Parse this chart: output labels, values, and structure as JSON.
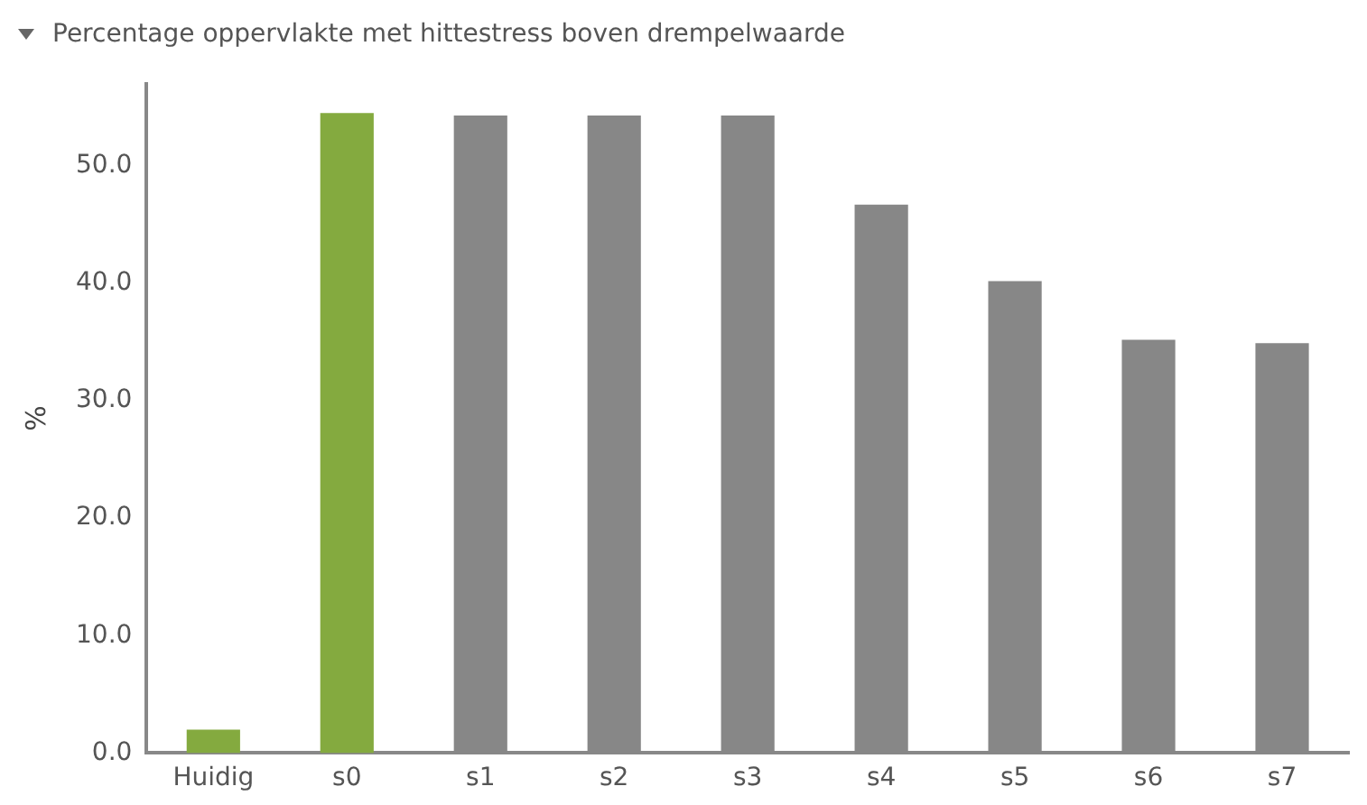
{
  "chart_data": {
    "type": "bar",
    "title": "Percentage oppervlakte met hittestress boven drempelwaarde",
    "ylabel": "%",
    "categories": [
      "Huidig",
      "s0",
      "s1",
      "s2",
      "s3",
      "s4",
      "s5",
      "s6",
      "s7"
    ],
    "values": [
      2.0,
      54.5,
      54.3,
      54.3,
      54.3,
      46.7,
      40.2,
      35.2,
      34.9
    ],
    "colors": [
      "#84aa3f",
      "#84aa3f",
      "#878787",
      "#878787",
      "#878787",
      "#878787",
      "#878787",
      "#878787",
      "#878787"
    ],
    "ylim": [
      0,
      57
    ],
    "yticks": [
      {
        "value": 0,
        "label": "0.0"
      },
      {
        "value": 10,
        "label": "10.0"
      },
      {
        "value": 20,
        "label": "20.0"
      },
      {
        "value": 30,
        "label": "30.0"
      },
      {
        "value": 40,
        "label": "40.0"
      },
      {
        "value": 50,
        "label": "50.0"
      }
    ],
    "grid": false,
    "legend": false
  }
}
